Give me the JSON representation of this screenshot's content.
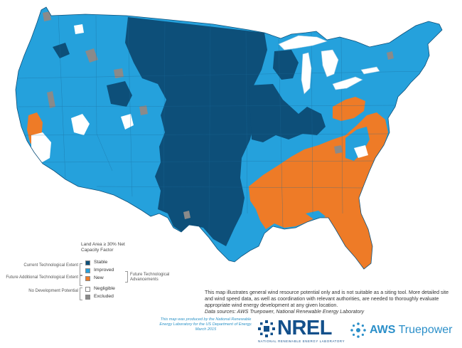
{
  "colors": {
    "stable": "#0d4f79",
    "improved": "#25a1dc",
    "new": "#ee7b27",
    "negligible": "#ffffff",
    "excluded": "#8a8a8a",
    "brand_nrel": "#13508b",
    "brand_aws": "#2b8fc9"
  },
  "legend": {
    "heading": "Land Area ≥ 30% Net Capacity Factor",
    "groups": {
      "current": "Current Technological Extent",
      "future_additional": "Future Additional Technological Extent",
      "no_development": "No Development Potential"
    },
    "items": [
      {
        "label": "Stable",
        "color": "#0d4f79"
      },
      {
        "label": "Improved",
        "color": "#25a1dc"
      },
      {
        "label": "New",
        "color": "#ee7b27"
      },
      {
        "label": "Negligible",
        "color": "#ffffff"
      },
      {
        "label": "Excluded",
        "color": "#8a8a8a"
      }
    ],
    "future_label": "Future Technological Advancements"
  },
  "disclaimer": "This map illustrates general wind resource potential only and is not suitable as a siting tool. More detailed site and wind speed data, as well as coordination with relevant authorities, are needed to thoroughly evaluate appropriate wind energy development at any given location.",
  "data_sources": "Data sources: AWS Truepower, National Renewable Energy Laboratory",
  "credit": "This map was produced by the National Renewable Energy Laboratory for the US Department of Energy. March 2015",
  "logos": {
    "nrel_word": "NREL",
    "nrel_sub": "NATIONAL RENEWABLE ENERGY LABORATORY",
    "aws_word": "AWS",
    "aws_tail": "Truepower"
  }
}
